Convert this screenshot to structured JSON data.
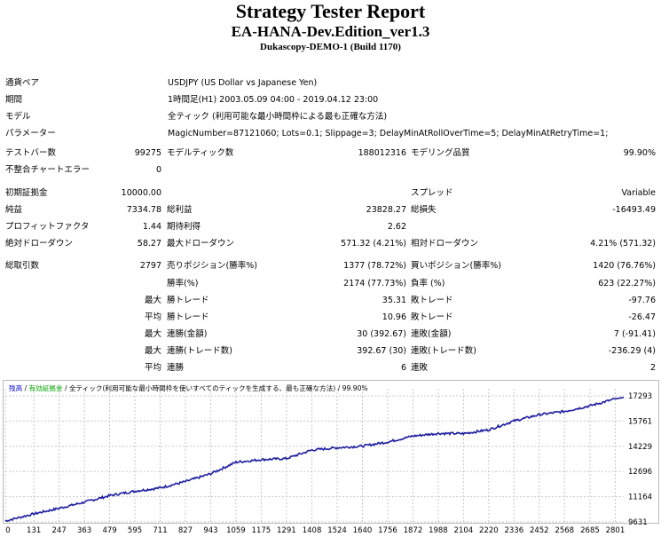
{
  "header": {
    "title": "Strategy Tester Report",
    "ea_name": "EA-HANA-Dev.Edition_ver1.3",
    "server": "Dukascopy-DEMO-1 (Build 1170)"
  },
  "settings": {
    "symbol_label": "通貨ペア",
    "symbol_value": "USDJPY (US Dollar vs Japanese Yen)",
    "period_label": "期間",
    "period_value": "1時間足(H1) 2003.05.09 04:00 - 2019.04.12 23:00",
    "model_label": "モデル",
    "model_value": "全ティック (利用可能な最小時間枠による最も正確な方法)",
    "params_label": "パラメーター",
    "params_value": "MagicNumber=87121060; Lots=0.1; Slippage=3; DelayMinAtRollOverTime=5; DelayMinAtRetryTime=1;"
  },
  "stats": {
    "bars_label": "テストバー数",
    "bars_value": "99275",
    "ticks_label": "モデルティック数",
    "ticks_value": "188012316",
    "quality_label": "モデリング品質",
    "quality_value": "99.90%",
    "mismatch_label": "不整合チャートエラー",
    "mismatch_value": "0",
    "deposit_label": "初期証拠金",
    "deposit_value": "10000.00",
    "spread_label": "スプレッド",
    "spread_value": "Variable",
    "net_label": "純益",
    "net_value": "7334.78",
    "gross_profit_label": "総利益",
    "gross_profit_value": "23828.27",
    "gross_loss_label": "総損失",
    "gross_loss_value": "-16493.49",
    "pf_label": "プロフィットファクタ",
    "pf_value": "1.44",
    "payoff_label": "期待利得",
    "payoff_value": "2.62",
    "abs_dd_label": "絶対ドローダウン",
    "abs_dd_value": "58.27",
    "max_dd_label": "最大ドローダウン",
    "max_dd_value": "571.32 (4.21%)",
    "rel_dd_label": "相対ドローダウン",
    "rel_dd_value": "4.21% (571.32)",
    "trades_label": "総取引数",
    "trades_value": "2797",
    "short_label": "売りポジション(勝率%)",
    "short_value": "1377 (78.72%)",
    "long_label": "買いポジション(勝率%)",
    "long_value": "1420 (76.76%)",
    "win_label": "勝率(%)",
    "win_value": "2174 (77.73%)",
    "loss_label": "負率 (%)",
    "loss_value": "623 (22.27%)",
    "max_word": "最大",
    "avg_word": "平均",
    "largest_win_label": "勝トレード",
    "largest_win_value": "35.31",
    "largest_loss_label": "敗トレード",
    "largest_loss_value": "-97.76",
    "avg_win_label": "勝トレード",
    "avg_win_value": "10.96",
    "avg_loss_label": "敗トレード",
    "avg_loss_value": "-26.47",
    "consec_win_label": "連勝(金額)",
    "consec_win_value": "30 (392.67)",
    "consec_loss_label": "連敗(金額)",
    "consec_loss_value": "7 (-91.41)",
    "consec_profit_label": "連勝(トレード数)",
    "consec_profit_value": "392.67 (30)",
    "consec_lossamt_label": "連敗(トレード数)",
    "consec_lossamt_value": "-236.29 (4)",
    "avg_consec_win_label": "連勝",
    "avg_consec_win_value": "6",
    "avg_consec_loss_label": "連敗",
    "avg_consec_loss_value": "2"
  },
  "chart_data": {
    "type": "line",
    "legend": {
      "balance": "残高",
      "sep1": " / ",
      "lots": "有効証拠金",
      "sep2": " / ",
      "model": "全ティック(利用可能な最小時間枠を使いすべてのティックを生成する、最も正確な方法)",
      "sep3": " / ",
      "quality": "99.90%"
    },
    "x_ticks": [
      "0",
      "131",
      "247",
      "363",
      "479",
      "595",
      "711",
      "827",
      "943",
      "1059",
      "1175",
      "1291",
      "1408",
      "1524",
      "1640",
      "1756",
      "1872",
      "1988",
      "2104",
      "2220",
      "2336",
      "2452",
      "2568",
      "2685",
      "2801"
    ],
    "y_ticks": [
      "17293",
      "15761",
      "14229",
      "12696",
      "11164",
      "9631"
    ],
    "ylim": [
      9631,
      17293
    ],
    "xlim": [
      0,
      2840
    ],
    "colors": {
      "balance": "#1e1ea0",
      "grid_x": "#c8c8c8",
      "grid_y": "#c8c8c8",
      "legend_blue": "#0000cc",
      "legend_green": "#00a000"
    },
    "x": [
      0,
      131,
      247,
      363,
      479,
      595,
      711,
      827,
      943,
      1059,
      1175,
      1291,
      1408,
      1524,
      1640,
      1756,
      1872,
      1988,
      2104,
      2220,
      2336,
      2452,
      2568,
      2685,
      2801
    ],
    "values": [
      9690,
      10120,
      10460,
      10830,
      11230,
      11500,
      11700,
      12080,
      12560,
      13260,
      13420,
      13480,
      14000,
      14140,
      14240,
      14490,
      14850,
      15010,
      15000,
      15230,
      15770,
      16150,
      16350,
      16690,
      17110
    ]
  }
}
